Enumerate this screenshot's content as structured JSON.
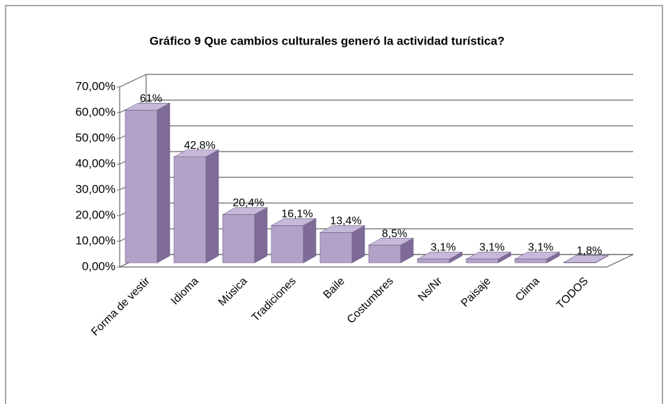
{
  "chart_data": {
    "type": "bar3d",
    "title": "Gráfico 9 Que cambios culturales generó la actividad turística?",
    "categories": [
      "Forma de vestir",
      "Idioma",
      "Música",
      "Tradiciones",
      "Baile",
      "Costumbres",
      "Ns/Nr",
      "Paisaje",
      "Clima",
      "TODOS"
    ],
    "values": [
      61,
      42.8,
      20.4,
      16.1,
      13.4,
      8.5,
      3.1,
      3.1,
      3.1,
      1.8
    ],
    "value_labels": [
      "61%",
      "42,8%",
      "20,4%",
      "16,1%",
      "13,4%",
      "8,5%",
      "3,1%",
      "3,1%",
      "3,1%",
      "1,8%"
    ],
    "color": "#b3a2c7",
    "ylim": [
      0,
      70
    ],
    "yticks": [
      {
        "value": 0,
        "label": "0,00%"
      },
      {
        "value": 10,
        "label": "10,00%"
      },
      {
        "value": 20,
        "label": "20,00%"
      },
      {
        "value": 30,
        "label": "30,00%"
      },
      {
        "value": 40,
        "label": "40,00%"
      },
      {
        "value": 50,
        "label": "50,00%"
      },
      {
        "value": 60,
        "label": "60,00%"
      },
      {
        "value": 70,
        "label": "70,00%"
      }
    ],
    "grid": true
  }
}
